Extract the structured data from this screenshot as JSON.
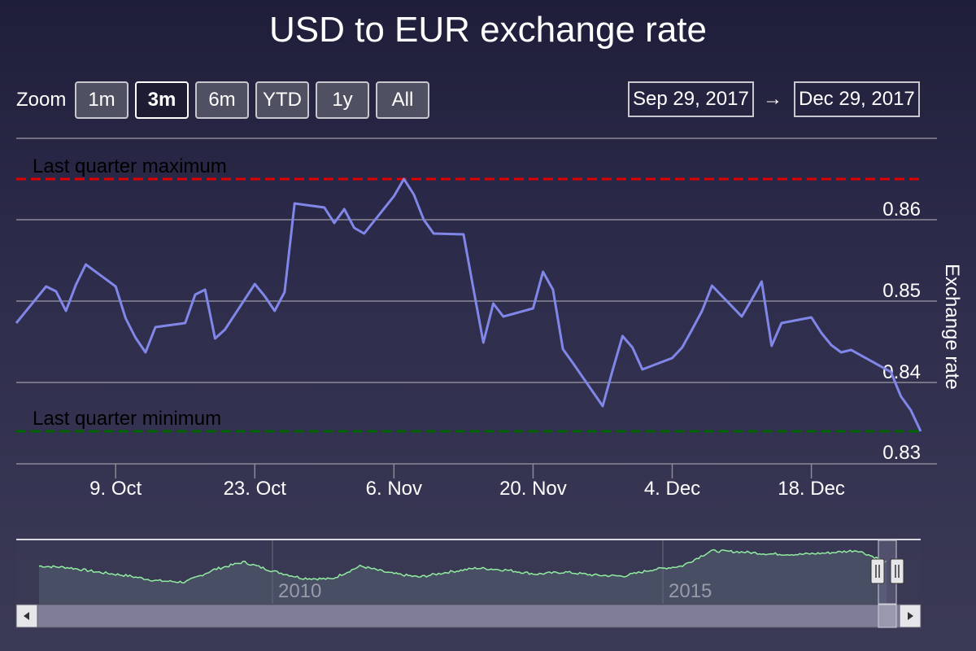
{
  "title": "USD to EUR exchange rate",
  "zoom": {
    "label": "Zoom",
    "buttons": [
      "1m",
      "3m",
      "6m",
      "YTD",
      "1y",
      "All"
    ],
    "active": "3m"
  },
  "range": {
    "from": "Sep 29, 2017",
    "arrow": "→",
    "to": "Dec 29, 2017"
  },
  "chart_data": {
    "type": "line",
    "title": "USD to EUR exchange rate",
    "ylabel": "Exchange rate",
    "xlabel": "",
    "x_range": [
      "2017-09-29",
      "2017-12-29"
    ],
    "ylim": [
      0.83,
      0.865
    ],
    "x_tick_labels": [
      "9. Oct",
      "23. Oct",
      "6. Nov",
      "20. Nov",
      "4. Dec",
      "18. Dec"
    ],
    "y_tick_labels": [
      "0.83",
      "0.84",
      "0.85",
      "0.86"
    ],
    "grid": true,
    "series": [
      {
        "color": "#8087e8",
        "points": [
          [
            "2017-09-29",
            0.8473
          ],
          [
            "2017-10-02",
            0.8518
          ],
          [
            "2017-10-03",
            0.8512
          ],
          [
            "2017-10-04",
            0.8488
          ],
          [
            "2017-10-05",
            0.852
          ],
          [
            "2017-10-06",
            0.8545
          ],
          [
            "2017-10-09",
            0.8518
          ],
          [
            "2017-10-10",
            0.8479
          ],
          [
            "2017-10-11",
            0.8455
          ],
          [
            "2017-10-12",
            0.8437
          ],
          [
            "2017-10-13",
            0.8468
          ],
          [
            "2017-10-16",
            0.8473
          ],
          [
            "2017-10-17",
            0.8508
          ],
          [
            "2017-10-18",
            0.8514
          ],
          [
            "2017-10-19",
            0.8454
          ],
          [
            "2017-10-20",
            0.8465
          ],
          [
            "2017-10-23",
            0.8521
          ],
          [
            "2017-10-24",
            0.8506
          ],
          [
            "2017-10-25",
            0.8488
          ],
          [
            "2017-10-26",
            0.8511
          ],
          [
            "2017-10-27",
            0.862
          ],
          [
            "2017-10-30",
            0.8615
          ],
          [
            "2017-10-31",
            0.8596
          ],
          [
            "2017-11-01",
            0.8613
          ],
          [
            "2017-11-02",
            0.859
          ],
          [
            "2017-11-03",
            0.8583
          ],
          [
            "2017-11-06",
            0.8629
          ],
          [
            "2017-11-07",
            0.865
          ],
          [
            "2017-11-08",
            0.8631
          ],
          [
            "2017-11-09",
            0.86
          ],
          [
            "2017-11-10",
            0.8583
          ],
          [
            "2017-11-13",
            0.8582
          ],
          [
            "2017-11-14",
            0.8515
          ],
          [
            "2017-11-15",
            0.8449
          ],
          [
            "2017-11-16",
            0.8497
          ],
          [
            "2017-11-17",
            0.8481
          ],
          [
            "2017-11-20",
            0.8491
          ],
          [
            "2017-11-21",
            0.8536
          ],
          [
            "2017-11-22",
            0.8514
          ],
          [
            "2017-11-23",
            0.8441
          ],
          [
            "2017-11-24",
            0.8424
          ],
          [
            "2017-11-27",
            0.8371
          ],
          [
            "2017-11-28",
            0.8415
          ],
          [
            "2017-11-29",
            0.8457
          ],
          [
            "2017-11-30",
            0.8443
          ],
          [
            "2017-12-01",
            0.8416
          ],
          [
            "2017-12-04",
            0.843
          ],
          [
            "2017-12-05",
            0.8443
          ],
          [
            "2017-12-06",
            0.8465
          ],
          [
            "2017-12-07",
            0.8488
          ],
          [
            "2017-12-08",
            0.8519
          ],
          [
            "2017-12-11",
            0.8481
          ],
          [
            "2017-12-12",
            0.8502
          ],
          [
            "2017-12-13",
            0.8524
          ],
          [
            "2017-12-14",
            0.8445
          ],
          [
            "2017-12-15",
            0.8473
          ],
          [
            "2017-12-18",
            0.848
          ],
          [
            "2017-12-19",
            0.8461
          ],
          [
            "2017-12-20",
            0.8446
          ],
          [
            "2017-12-21",
            0.8437
          ],
          [
            "2017-12-22",
            0.844
          ],
          [
            "2017-12-26",
            0.8413
          ],
          [
            "2017-12-27",
            0.8383
          ],
          [
            "2017-12-28",
            0.8366
          ],
          [
            "2017-12-29",
            0.834
          ]
        ]
      }
    ],
    "plot_lines": [
      {
        "label": "Last quarter maximum",
        "value": 0.865,
        "color": "#e00000",
        "dash": true
      },
      {
        "label": "Last quarter minimum",
        "value": 0.834,
        "color": "#006400",
        "dash": true
      }
    ]
  },
  "navigator": {
    "year_labels": [
      "2010",
      "2015"
    ],
    "series_color": "#90ed9f",
    "shape": [
      0.62,
      0.59,
      0.5,
      0.43,
      0.33,
      0.3,
      0.55,
      0.7,
      0.52,
      0.38,
      0.36,
      0.62,
      0.48,
      0.4,
      0.5,
      0.58,
      0.54,
      0.46,
      0.5,
      0.44,
      0.42,
      0.55,
      0.62,
      0.92,
      0.9,
      0.86,
      0.85,
      0.88,
      0.93,
      0.7
    ],
    "scroll_left_icon": "arrow-left-icon",
    "scroll_right_icon": "arrow-right-icon"
  }
}
